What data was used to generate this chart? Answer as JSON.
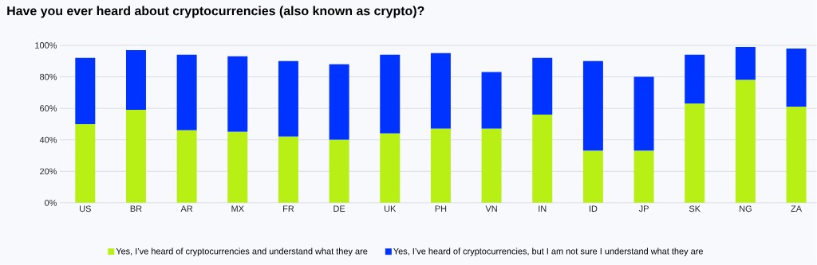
{
  "chart_data": {
    "type": "bar",
    "title": "Have you ever heard about cryptocurrencies (also known as crypto)?",
    "categories": [
      "US",
      "BR",
      "AR",
      "MX",
      "FR",
      "DE",
      "UK",
      "PH",
      "VN",
      "IN",
      "ID",
      "JP",
      "SK",
      "NG",
      "ZA"
    ],
    "stacked": true,
    "series": [
      {
        "name": "Yes, I’ve heard of cryptocurrencies and understand what they are",
        "color": "#b8f016",
        "values": [
          50,
          59,
          46,
          45,
          42,
          40,
          44,
          47,
          47,
          56,
          33,
          33,
          63,
          78,
          61
        ]
      },
      {
        "name": "Yes, I’ve heard of cryptocurrencies, but I am not sure I understand what they are",
        "color": "#0033ff",
        "values": [
          42,
          38,
          48,
          48,
          48,
          48,
          50,
          48,
          36,
          36,
          57,
          47,
          31,
          21,
          37
        ]
      }
    ],
    "ylim": [
      0,
      100
    ],
    "yticks": [
      {
        "value": 0,
        "label": "0%"
      },
      {
        "value": 20,
        "label": "20%"
      },
      {
        "value": 40,
        "label": "40%"
      },
      {
        "value": 60,
        "label": "60%"
      },
      {
        "value": 80,
        "label": "80%"
      },
      {
        "value": 100,
        "label": "100%"
      }
    ],
    "grid": "y",
    "legend": "bottom"
  }
}
